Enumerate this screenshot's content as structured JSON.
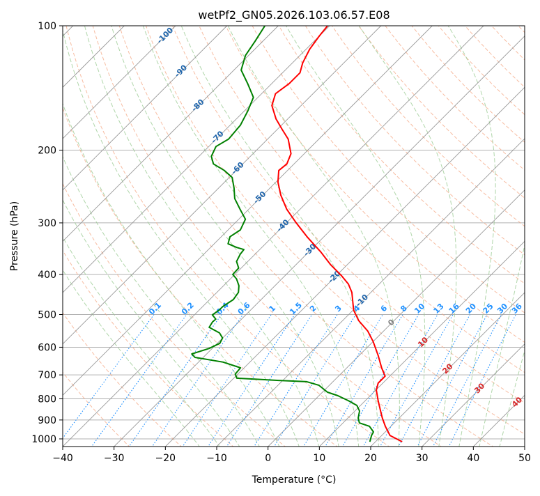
{
  "chart_data": {
    "type": "line",
    "subtype": "skew-t log-p",
    "title": "wetPf2_GN05.2026.103.06.57.E08",
    "xlabel": "Temperature (°C)",
    "ylabel": "Pressure (hPa)",
    "xlim": [
      -40,
      50
    ],
    "ylim": [
      1050,
      100
    ],
    "x_ticks": [
      -40,
      -30,
      -20,
      -10,
      0,
      10,
      20,
      30,
      40,
      50
    ],
    "y_ticks": [
      100,
      200,
      300,
      400,
      500,
      600,
      700,
      800,
      900,
      1000
    ],
    "grid": true,
    "colors": {
      "temperature": "#ff0000",
      "dewpoint": "#008000",
      "isotherm": "#999999",
      "dry_adiabat": "#f4a582",
      "moist_adiabat": "#9ccc95",
      "mixing_ratio": "#1e90ff",
      "label_negative": "#2166ac",
      "label_zero": "#808080",
      "label_positive": "#d62728"
    },
    "series": [
      {
        "name": "Temperature",
        "pressure": [
          1016,
          981,
          932,
          890,
          856,
          808,
          762,
          733,
          705,
          673,
          628,
          581,
          548,
          517,
          488,
          442,
          422,
          402,
          379,
          353,
          324,
          300,
          278,
          257,
          239,
          224,
          216,
          204,
          188,
          178,
          168,
          156,
          146,
          138,
          130,
          123,
          114,
          106,
          100
        ],
        "values": [
          25.2,
          21.6,
          18.9,
          16.7,
          15.0,
          12.5,
          10.1,
          9.1,
          9.1,
          6.8,
          3.7,
          0.0,
          -3.1,
          -6.9,
          -9.9,
          -13.7,
          -16.0,
          -19.1,
          -23.2,
          -27.6,
          -33.3,
          -38.1,
          -42.6,
          -46.5,
          -49.6,
          -51.7,
          -51.4,
          -52.6,
          -56.0,
          -59.1,
          -62.3,
          -65.7,
          -67.3,
          -66.6,
          -66.6,
          -68.0,
          -69.3,
          -70.0,
          -70.4
        ]
      },
      {
        "name": "Dewpoint",
        "pressure": [
          1016,
          981,
          962,
          932,
          915,
          890,
          856,
          830,
          808,
          786,
          771,
          742,
          727,
          722,
          713,
          697,
          673,
          652,
          635,
          623,
          604,
          587,
          570,
          554,
          537,
          521,
          513,
          501,
          488,
          478,
          460,
          442,
          426,
          410,
          400,
          386,
          372,
          357,
          348,
          344,
          337,
          324,
          312,
          294,
          278,
          262,
          247,
          233,
          224,
          216,
          207,
          196,
          188,
          174,
          161,
          149,
          138,
          128,
          118,
          109,
          100
        ],
        "values": [
          18.9,
          18.0,
          17.7,
          15.8,
          13.2,
          12.0,
          10.9,
          9.3,
          6.7,
          3.7,
          1.0,
          -2.0,
          -5.1,
          -10.8,
          -19.4,
          -20.5,
          -20.7,
          -25.2,
          -31.6,
          -32.9,
          -30.6,
          -29.5,
          -30.0,
          -31.6,
          -34.7,
          -35.1,
          -35.0,
          -36.5,
          -36.1,
          -36.1,
          -35.4,
          -35.8,
          -37.0,
          -38.8,
          -40.4,
          -40.5,
          -42.2,
          -42.9,
          -43.1,
          -44.9,
          -47.3,
          -48.3,
          -47.6,
          -48.7,
          -51.7,
          -54.8,
          -57.0,
          -59.4,
          -62.3,
          -65.7,
          -67.6,
          -68.6,
          -67.6,
          -68.0,
          -69.3,
          -70.9,
          -74.7,
          -78.6,
          -80.6,
          -81.5,
          -82.6
        ]
      }
    ],
    "mixing_ratio_labels": [
      "0.1",
      "0.2",
      "0.4",
      "0.6",
      "1",
      "1.5",
      "2",
      "3",
      "4",
      "6",
      "8",
      "10",
      "13",
      "16",
      "20",
      "25",
      "30",
      "36"
    ],
    "mixing_ratio_values": [
      0.1,
      0.2,
      0.4,
      0.6,
      1,
      1.5,
      2,
      3,
      4,
      6,
      8,
      10,
      13,
      16,
      20,
      25,
      30,
      36
    ],
    "isotherm_labels": [
      {
        "text": "-100",
        "t": -100,
        "p": 105
      },
      {
        "text": "-90",
        "t": -90,
        "p": 128
      },
      {
        "text": "-80",
        "t": -80,
        "p": 155
      },
      {
        "text": "-70",
        "t": -70,
        "p": 185
      },
      {
        "text": "-60",
        "t": -60,
        "p": 220
      },
      {
        "text": "-50",
        "t": -50,
        "p": 259
      },
      {
        "text": "-40",
        "t": -40,
        "p": 303
      },
      {
        "text": "-30",
        "t": -30,
        "p": 347
      },
      {
        "text": "-20",
        "t": -20,
        "p": 403
      },
      {
        "text": "-10",
        "t": -10,
        "p": 460
      },
      {
        "text": "0",
        "t": 0,
        "p": 520
      },
      {
        "text": "10",
        "t": 10,
        "p": 580
      },
      {
        "text": "20",
        "t": 20,
        "p": 673
      },
      {
        "text": "30",
        "t": 30,
        "p": 750
      },
      {
        "text": "40",
        "t": 40,
        "p": 810
      }
    ]
  }
}
